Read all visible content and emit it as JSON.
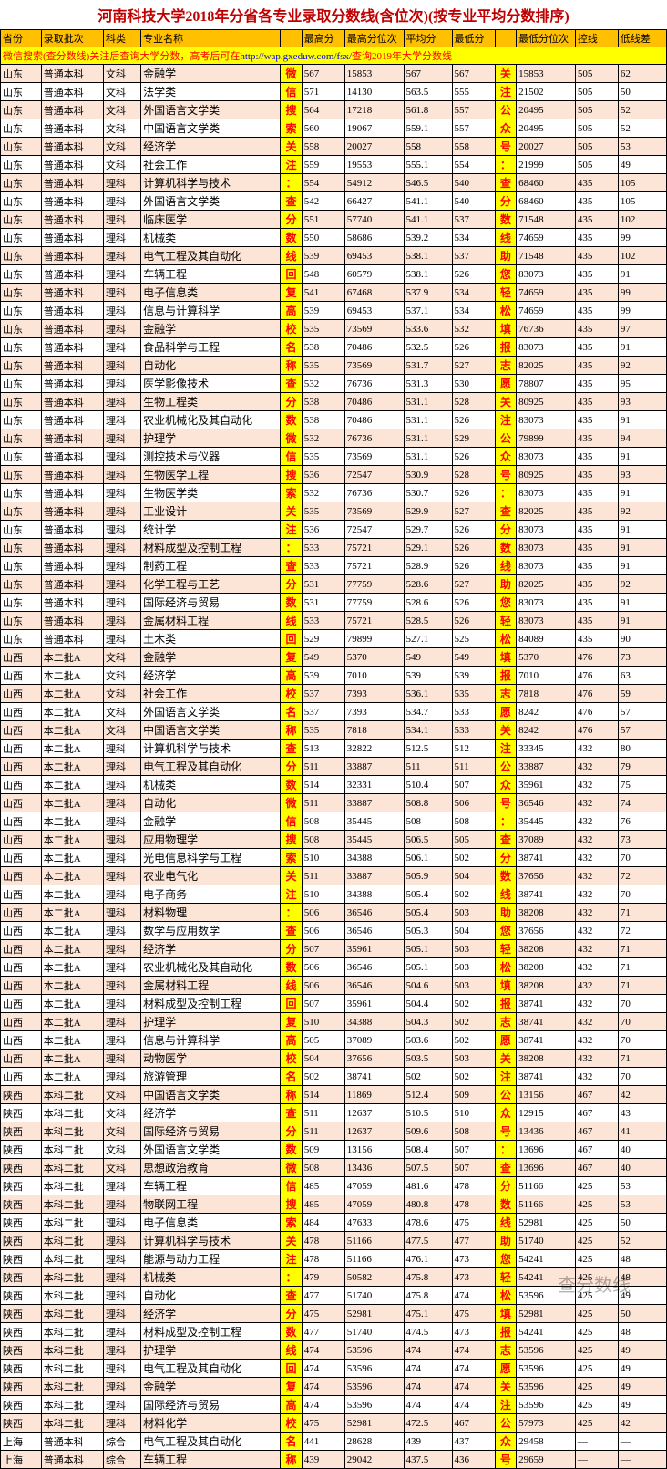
{
  "title": "河南科技大学2018年分省各专业录取分数线(含位次)(按专业平均分数排序)",
  "headers": [
    "省份",
    "录取批次",
    "科类",
    "专业名称",
    "",
    "最高分",
    "最高分位次",
    "平均分",
    "最低分",
    "",
    "最低分位次",
    "控线",
    "低线差"
  ],
  "url_prefix": "微信搜索(查分数线)关注后查询大学分数，高考后可在",
  "url_link": "http://wap.gxeduw.com/fsx/",
  "url_suffix": "查询2019年大学分数线",
  "vtext_left": "微信搜索关注：查分数线 回复高校名称查分数 微信搜索关注：查分数线 回复高校名称查分数 微信搜索关注：查分数线 回复高校名称查分数",
  "vtext_right": "关注公众号：查分数线 助您轻松填报志愿 关注公众号：查分数线 助您轻松填报志愿 关注公众号：查分数线 助您轻松填报志愿",
  "rows": [
    [
      "山东",
      "普通本科",
      "文科",
      "金融学",
      "567",
      "15853",
      "567",
      "567",
      "15853",
      "505",
      "62"
    ],
    [
      "山东",
      "普通本科",
      "文科",
      "法学类",
      "571",
      "14130",
      "563.5",
      "555",
      "21502",
      "505",
      "50"
    ],
    [
      "山东",
      "普通本科",
      "文科",
      "外国语言文学类",
      "564",
      "17218",
      "561.8",
      "557",
      "20495",
      "505",
      "52"
    ],
    [
      "山东",
      "普通本科",
      "文科",
      "中国语言文学类",
      "560",
      "19067",
      "559.1",
      "557",
      "20495",
      "505",
      "52"
    ],
    [
      "山东",
      "普通本科",
      "文科",
      "经济学",
      "558",
      "20027",
      "558",
      "558",
      "20027",
      "505",
      "53"
    ],
    [
      "山东",
      "普通本科",
      "文科",
      "社会工作",
      "559",
      "19553",
      "555.1",
      "554",
      "21999",
      "505",
      "49"
    ],
    [
      "山东",
      "普通本科",
      "理科",
      "计算机科学与技术",
      "554",
      "54912",
      "546.5",
      "540",
      "68460",
      "435",
      "105"
    ],
    [
      "山东",
      "普通本科",
      "理科",
      "外国语言文学类",
      "542",
      "66427",
      "541.1",
      "540",
      "68460",
      "435",
      "105"
    ],
    [
      "山东",
      "普通本科",
      "理科",
      "临床医学",
      "551",
      "57740",
      "541.1",
      "537",
      "71548",
      "435",
      "102"
    ],
    [
      "山东",
      "普通本科",
      "理科",
      "机械类",
      "550",
      "58686",
      "539.2",
      "534",
      "74659",
      "435",
      "99"
    ],
    [
      "山东",
      "普通本科",
      "理科",
      "电气工程及其自动化",
      "539",
      "69453",
      "538.1",
      "537",
      "71548",
      "435",
      "102"
    ],
    [
      "山东",
      "普通本科",
      "理科",
      "车辆工程",
      "548",
      "60579",
      "538.1",
      "526",
      "83073",
      "435",
      "91"
    ],
    [
      "山东",
      "普通本科",
      "理科",
      "电子信息类",
      "541",
      "67468",
      "537.9",
      "534",
      "74659",
      "435",
      "99"
    ],
    [
      "山东",
      "普通本科",
      "理科",
      "信息与计算科学",
      "539",
      "69453",
      "537.1",
      "534",
      "74659",
      "435",
      "99"
    ],
    [
      "山东",
      "普通本科",
      "理科",
      "金融学",
      "535",
      "73569",
      "533.6",
      "532",
      "76736",
      "435",
      "97"
    ],
    [
      "山东",
      "普通本科",
      "理科",
      "食品科学与工程",
      "538",
      "70486",
      "532.5",
      "526",
      "83073",
      "435",
      "91"
    ],
    [
      "山东",
      "普通本科",
      "理科",
      "自动化",
      "535",
      "73569",
      "531.7",
      "527",
      "82025",
      "435",
      "92"
    ],
    [
      "山东",
      "普通本科",
      "理科",
      "医学影像技术",
      "532",
      "76736",
      "531.3",
      "530",
      "78807",
      "435",
      "95"
    ],
    [
      "山东",
      "普通本科",
      "理科",
      "生物工程类",
      "538",
      "70486",
      "531.1",
      "528",
      "80925",
      "435",
      "93"
    ],
    [
      "山东",
      "普通本科",
      "理科",
      "农业机械化及其自动化",
      "538",
      "70486",
      "531.1",
      "526",
      "83073",
      "435",
      "91"
    ],
    [
      "山东",
      "普通本科",
      "理科",
      "护理学",
      "532",
      "76736",
      "531.1",
      "529",
      "79899",
      "435",
      "94"
    ],
    [
      "山东",
      "普通本科",
      "理科",
      "测控技术与仪器",
      "535",
      "73569",
      "531.1",
      "526",
      "83073",
      "435",
      "91"
    ],
    [
      "山东",
      "普通本科",
      "理科",
      "生物医学工程",
      "536",
      "72547",
      "530.9",
      "528",
      "80925",
      "435",
      "93"
    ],
    [
      "山东",
      "普通本科",
      "理科",
      "生物医学类",
      "532",
      "76736",
      "530.7",
      "526",
      "83073",
      "435",
      "91"
    ],
    [
      "山东",
      "普通本科",
      "理科",
      "工业设计",
      "535",
      "73569",
      "529.9",
      "527",
      "82025",
      "435",
      "92"
    ],
    [
      "山东",
      "普通本科",
      "理科",
      "统计学",
      "536",
      "72547",
      "529.7",
      "526",
      "83073",
      "435",
      "91"
    ],
    [
      "山东",
      "普通本科",
      "理科",
      "材料成型及控制工程",
      "533",
      "75721",
      "529.1",
      "526",
      "83073",
      "435",
      "91"
    ],
    [
      "山东",
      "普通本科",
      "理科",
      "制药工程",
      "533",
      "75721",
      "528.9",
      "526",
      "83073",
      "435",
      "91"
    ],
    [
      "山东",
      "普通本科",
      "理科",
      "化学工程与工艺",
      "531",
      "77759",
      "528.6",
      "527",
      "82025",
      "435",
      "92"
    ],
    [
      "山东",
      "普通本科",
      "理科",
      "国际经济与贸易",
      "531",
      "77759",
      "528.6",
      "526",
      "83073",
      "435",
      "91"
    ],
    [
      "山东",
      "普通本科",
      "理科",
      "金属材料工程",
      "533",
      "75721",
      "528.5",
      "526",
      "83073",
      "435",
      "91"
    ],
    [
      "山东",
      "普通本科",
      "理科",
      "土木类",
      "529",
      "79899",
      "527.1",
      "525",
      "84089",
      "435",
      "90"
    ],
    [
      "山西",
      "本二批A",
      "文科",
      "金融学",
      "549",
      "5370",
      "549",
      "549",
      "5370",
      "476",
      "73"
    ],
    [
      "山西",
      "本二批A",
      "文科",
      "经济学",
      "539",
      "7010",
      "539",
      "539",
      "7010",
      "476",
      "63"
    ],
    [
      "山西",
      "本二批A",
      "文科",
      "社会工作",
      "537",
      "7393",
      "536.1",
      "535",
      "7818",
      "476",
      "59"
    ],
    [
      "山西",
      "本二批A",
      "文科",
      "外国语言文学类",
      "537",
      "7393",
      "534.7",
      "533",
      "8242",
      "476",
      "57"
    ],
    [
      "山西",
      "本二批A",
      "文科",
      "中国语言文学类",
      "535",
      "7818",
      "534.1",
      "533",
      "8242",
      "476",
      "57"
    ],
    [
      "山西",
      "本二批A",
      "理科",
      "计算机科学与技术",
      "513",
      "32822",
      "512.5",
      "512",
      "33345",
      "432",
      "80"
    ],
    [
      "山西",
      "本二批A",
      "理科",
      "电气工程及其自动化",
      "511",
      "33887",
      "511",
      "511",
      "33887",
      "432",
      "79"
    ],
    [
      "山西",
      "本二批A",
      "理科",
      "机械类",
      "514",
      "32331",
      "510.4",
      "507",
      "35961",
      "432",
      "75"
    ],
    [
      "山西",
      "本二批A",
      "理科",
      "自动化",
      "511",
      "33887",
      "508.8",
      "506",
      "36546",
      "432",
      "74"
    ],
    [
      "山西",
      "本二批A",
      "理科",
      "金融学",
      "508",
      "35445",
      "508",
      "508",
      "35445",
      "432",
      "76"
    ],
    [
      "山西",
      "本二批A",
      "理科",
      "应用物理学",
      "508",
      "35445",
      "506.5",
      "505",
      "37089",
      "432",
      "73"
    ],
    [
      "山西",
      "本二批A",
      "理科",
      "光电信息科学与工程",
      "510",
      "34388",
      "506.1",
      "502",
      "38741",
      "432",
      "70"
    ],
    [
      "山西",
      "本二批A",
      "理科",
      "农业电气化",
      "511",
      "33887",
      "505.9",
      "504",
      "37656",
      "432",
      "72"
    ],
    [
      "山西",
      "本二批A",
      "理科",
      "电子商务",
      "510",
      "34388",
      "505.4",
      "502",
      "38741",
      "432",
      "70"
    ],
    [
      "山西",
      "本二批A",
      "理科",
      "材料物理",
      "506",
      "36546",
      "505.4",
      "503",
      "38208",
      "432",
      "71"
    ],
    [
      "山西",
      "本二批A",
      "理科",
      "数学与应用数学",
      "506",
      "36546",
      "505.3",
      "504",
      "37656",
      "432",
      "72"
    ],
    [
      "山西",
      "本二批A",
      "理科",
      "经济学",
      "507",
      "35961",
      "505.1",
      "503",
      "38208",
      "432",
      "71"
    ],
    [
      "山西",
      "本二批A",
      "理科",
      "农业机械化及其自动化",
      "506",
      "36546",
      "505.1",
      "503",
      "38208",
      "432",
      "71"
    ],
    [
      "山西",
      "本二批A",
      "理科",
      "金属材料工程",
      "506",
      "36546",
      "504.6",
      "503",
      "38208",
      "432",
      "71"
    ],
    [
      "山西",
      "本二批A",
      "理科",
      "材料成型及控制工程",
      "507",
      "35961",
      "504.4",
      "502",
      "38741",
      "432",
      "70"
    ],
    [
      "山西",
      "本二批A",
      "理科",
      "护理学",
      "510",
      "34388",
      "504.3",
      "502",
      "38741",
      "432",
      "70"
    ],
    [
      "山西",
      "本二批A",
      "理科",
      "信息与计算科学",
      "505",
      "37089",
      "503.6",
      "502",
      "38741",
      "432",
      "70"
    ],
    [
      "山西",
      "本二批A",
      "理科",
      "动物医学",
      "504",
      "37656",
      "503.5",
      "503",
      "38208",
      "432",
      "71"
    ],
    [
      "山西",
      "本二批A",
      "理科",
      "旅游管理",
      "502",
      "38741",
      "502",
      "502",
      "38741",
      "432",
      "70"
    ],
    [
      "陕西",
      "本科二批",
      "文科",
      "中国语言文学类",
      "514",
      "11869",
      "512.4",
      "509",
      "13156",
      "467",
      "42"
    ],
    [
      "陕西",
      "本科二批",
      "文科",
      "经济学",
      "511",
      "12637",
      "510.5",
      "510",
      "12915",
      "467",
      "43"
    ],
    [
      "陕西",
      "本科二批",
      "文科",
      "国际经济与贸易",
      "511",
      "12637",
      "509.6",
      "508",
      "13436",
      "467",
      "41"
    ],
    [
      "陕西",
      "本科二批",
      "文科",
      "外国语言文学类",
      "509",
      "13156",
      "508.4",
      "507",
      "13696",
      "467",
      "40"
    ],
    [
      "陕西",
      "本科二批",
      "文科",
      "思想政治教育",
      "508",
      "13436",
      "507.5",
      "507",
      "13696",
      "467",
      "40"
    ],
    [
      "陕西",
      "本科二批",
      "理科",
      "车辆工程",
      "485",
      "47059",
      "481.6",
      "478",
      "51166",
      "425",
      "53"
    ],
    [
      "陕西",
      "本科二批",
      "理科",
      "物联网工程",
      "485",
      "47059",
      "480.8",
      "478",
      "51166",
      "425",
      "53"
    ],
    [
      "陕西",
      "本科二批",
      "理科",
      "电子信息类",
      "484",
      "47633",
      "478.6",
      "475",
      "52981",
      "425",
      "50"
    ],
    [
      "陕西",
      "本科二批",
      "理科",
      "计算机科学与技术",
      "478",
      "51166",
      "477.5",
      "477",
      "51740",
      "425",
      "52"
    ],
    [
      "陕西",
      "本科二批",
      "理科",
      "能源与动力工程",
      "478",
      "51166",
      "476.1",
      "473",
      "54241",
      "425",
      "48"
    ],
    [
      "陕西",
      "本科二批",
      "理科",
      "机械类",
      "479",
      "50582",
      "475.8",
      "473",
      "54241",
      "425",
      "48"
    ],
    [
      "陕西",
      "本科二批",
      "理科",
      "自动化",
      "477",
      "51740",
      "475.8",
      "474",
      "53596",
      "425",
      "49"
    ],
    [
      "陕西",
      "本科二批",
      "理科",
      "经济学",
      "475",
      "52981",
      "475.1",
      "475",
      "52981",
      "425",
      "50"
    ],
    [
      "陕西",
      "本科二批",
      "理科",
      "材料成型及控制工程",
      "477",
      "51740",
      "474.5",
      "473",
      "54241",
      "425",
      "48"
    ],
    [
      "陕西",
      "本科二批",
      "理科",
      "护理学",
      "474",
      "53596",
      "474",
      "474",
      "53596",
      "425",
      "49"
    ],
    [
      "陕西",
      "本科二批",
      "理科",
      "电气工程及其自动化",
      "474",
      "53596",
      "474",
      "474",
      "53596",
      "425",
      "49"
    ],
    [
      "陕西",
      "本科二批",
      "理科",
      "金融学",
      "474",
      "53596",
      "474",
      "474",
      "53596",
      "425",
      "49"
    ],
    [
      "陕西",
      "本科二批",
      "理科",
      "国际经济与贸易",
      "474",
      "53596",
      "474",
      "474",
      "53596",
      "425",
      "49"
    ],
    [
      "陕西",
      "本科二批",
      "理科",
      "材料化学",
      "475",
      "52981",
      "472.5",
      "467",
      "57973",
      "425",
      "42"
    ],
    [
      "上海",
      "普通本科",
      "综合",
      "电气工程及其自动化",
      "441",
      "28628",
      "439",
      "437",
      "29458",
      "—",
      "—"
    ],
    [
      "上海",
      "普通本科",
      "综合",
      "车辆工程",
      "439",
      "29042",
      "437.5",
      "436",
      "29659",
      "—",
      "—"
    ]
  ],
  "watermark": "查分数线"
}
